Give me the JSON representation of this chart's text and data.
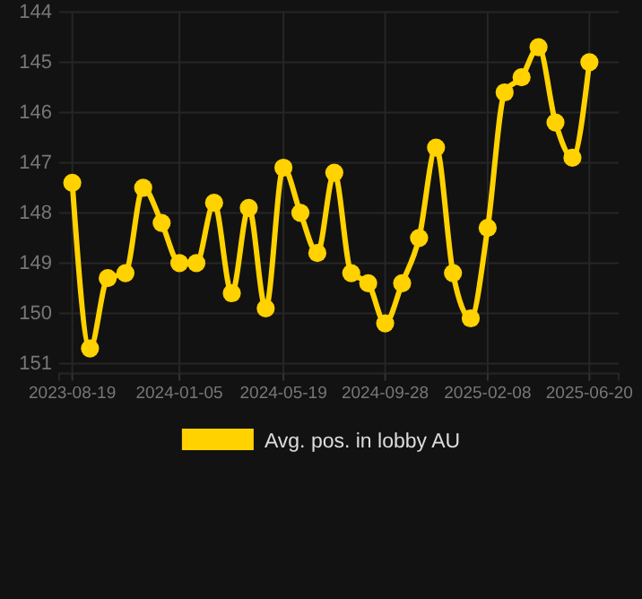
{
  "chart_data": {
    "type": "line",
    "x": [
      "2023-08-19",
      "2023-09-11",
      "2023-10-04",
      "2023-10-27",
      "2023-11-19",
      "2023-12-13",
      "2024-01-05",
      "2024-01-27",
      "2024-02-19",
      "2024-03-13",
      "2024-04-04",
      "2024-04-26",
      "2024-05-19",
      "2024-06-10",
      "2024-07-02",
      "2024-07-24",
      "2024-08-15",
      "2024-09-06",
      "2024-09-28",
      "2024-10-20",
      "2024-11-11",
      "2024-12-03",
      "2024-12-25",
      "2025-01-17",
      "2025-02-08",
      "2025-03-02",
      "2025-03-24",
      "2025-04-15",
      "2025-05-07",
      "2025-05-29",
      "2025-06-20"
    ],
    "series": [
      {
        "name": "Avg. pos. in lobby AU",
        "color": "#ffd200",
        "values": [
          147.4,
          150.7,
          149.3,
          149.2,
          147.5,
          148.2,
          149.0,
          149.0,
          147.8,
          149.6,
          147.9,
          149.9,
          147.1,
          148.0,
          148.8,
          147.2,
          149.2,
          149.4,
          150.2,
          149.4,
          148.5,
          146.7,
          149.2,
          150.1,
          148.3,
          145.6,
          145.3,
          144.7,
          146.2,
          146.9,
          145.0
        ]
      }
    ],
    "xlim": [
      "2023-08-02",
      "2025-07-28"
    ],
    "xticks": [
      "2023-08-19",
      "2024-01-05",
      "2024-05-19",
      "2024-09-28",
      "2025-02-08",
      "2025-06-20"
    ],
    "ylim": [
      151.2,
      144
    ],
    "yticks": [
      144,
      145,
      146,
      147,
      148,
      149,
      150,
      151
    ],
    "grid": true,
    "legend": "bottom",
    "marker": "circle",
    "line_style": "solid"
  }
}
